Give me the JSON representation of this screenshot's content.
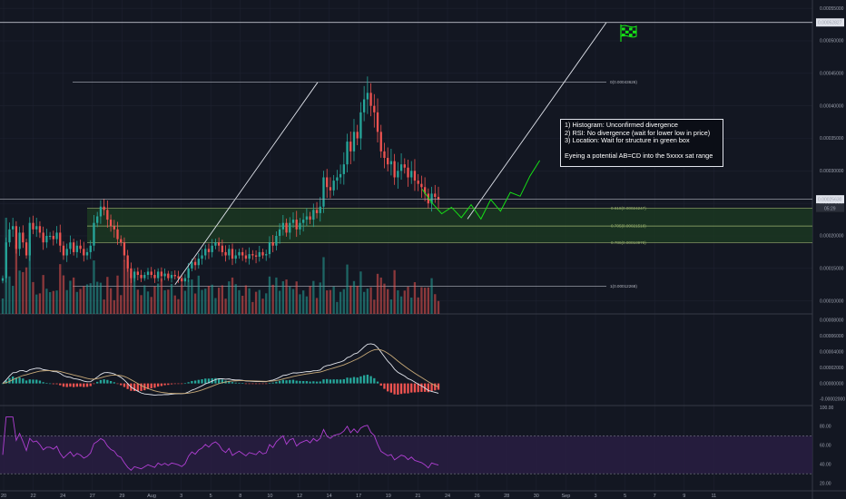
{
  "colors": {
    "background": "#131722",
    "grid": "#1e2230",
    "bull": "#26a69a",
    "bear": "#ef5350",
    "candle_light": "#e0e3eb",
    "zone_fill": "#1c3a22",
    "fib_line": "#9bb26e",
    "projection": "#16e016",
    "rsi": "#b03fd3",
    "rsi_band": "#2b1e45",
    "macd": "#e0e3eb",
    "signal": "#c6a877"
  },
  "annotation": {
    "lines": [
      "1) Histogram: Unconfirmed divergence",
      "2) RSI: No divergence (wait for lower low in price)",
      "3) Location: Wait for structure in green box",
      "",
      "Eyeing a potential AB=CD into the 5xxxx sat range"
    ]
  },
  "flag_icon": "checkered-flag",
  "chart_data": [
    {
      "type": "candlestick",
      "pane": "price",
      "x_labels": [
        "20",
        "22",
        "24",
        "27",
        "29",
        "Aug",
        "3",
        "5",
        "8",
        "10",
        "12",
        "14",
        "17",
        "19",
        "21",
        "24",
        "26",
        "28",
        "30",
        "Sep",
        "3",
        "5",
        "7",
        "9",
        "11"
      ],
      "y_ticks": [
        "0.00055000",
        "0.00050000",
        "0.00045000",
        "0.00040000",
        "0.00035000",
        "0.00030000",
        "0.00025000",
        "0.00020000",
        "0.00015000",
        "0.00010000"
      ],
      "ylim": [
        8e-05,
        0.00056
      ],
      "price_markers": [
        {
          "value": 0.00052827,
          "label": "0.00052827"
        },
        {
          "value": 0.0002563,
          "label": "0.00025630"
        },
        {
          "label": "05:29"
        }
      ],
      "fibonacci": [
        {
          "level": 0,
          "value": 0.00043626,
          "label": "0(0.00043626)"
        },
        {
          "level": 0.618,
          "value": 0.00024247,
          "label": "0.618(0.00024247)"
        },
        {
          "level": 0.705,
          "value": 0.00021518,
          "label": "0.705(0.00021518)"
        },
        {
          "level": 0.786,
          "value": 0.00018978,
          "label": "0.786(0.00018978)"
        },
        {
          "level": 1,
          "value": 0.00012268,
          "label": "1(0.00012268)"
        }
      ],
      "target": 0.00052827,
      "close": [
        0.000135,
        0.00019,
        0.00021,
        0.000215,
        0.00018,
        0.000205,
        0.00019,
        0.00017,
        0.00022,
        0.00021,
        0.000215,
        0.000205,
        0.00019,
        0.0002,
        0.0002,
        0.000195,
        0.000205,
        0.000185,
        0.00017,
        0.00018,
        0.00019,
        0.000175,
        0.000185,
        0.00018,
        0.00017,
        0.000175,
        0.000185,
        0.00022,
        0.00023,
        0.000245,
        0.00024,
        0.000225,
        0.000215,
        0.00021,
        0.000195,
        0.00019,
        0.00017,
        0.00015,
        0.000135,
        0.000145,
        0.00014,
        0.000135,
        0.00014,
        0.000145,
        0.00014,
        0.000135,
        0.000145,
        0.000138,
        0.000142,
        0.000135,
        0.00014,
        0.000138,
        0.000135,
        0.00013,
        0.000135,
        0.00015,
        0.00016,
        0.000155,
        0.000165,
        0.00017,
        0.00018,
        0.000175,
        0.000185,
        0.00019,
        0.000185,
        0.000175,
        0.00017,
        0.00018,
        0.000165,
        0.00017,
        0.000175,
        0.00017,
        0.000165,
        0.000172,
        0.00017,
        0.000168,
        0.000175,
        0.00017,
        0.000172,
        0.00019,
        0.000185,
        0.0002,
        0.00021,
        0.00022,
        0.000205,
        0.00022,
        0.000225,
        0.00021,
        0.00022,
        0.000225,
        0.00023,
        0.000225,
        0.00024,
        0.000235,
        0.000245,
        0.00029,
        0.000275,
        0.00027,
        0.000285,
        0.00029,
        0.000295,
        0.00031,
        0.000345,
        0.00033,
        0.00036,
        0.00035,
        0.00039,
        0.00041,
        0.00042,
        0.0004,
        0.00039,
        0.00036,
        0.00033,
        0.00032,
        0.00031,
        0.000315,
        0.00029,
        0.0003,
        0.00031,
        0.000305,
        0.00029,
        0.0003,
        0.000285,
        0.00028,
        0.000275,
        0.000265,
        0.00025,
        0.000265,
        0.00026,
        0.000256
      ],
      "projection_path": [
        0.000272,
        0.000251,
        0.000234,
        0.000244,
        0.000228,
        0.000248,
        0.000226,
        0.000256,
        0.000238,
        0.000267,
        0.000261,
        0.000292,
        0.000316
      ]
    },
    {
      "type": "macd",
      "pane": "macd",
      "y_ticks": [
        "0.00008000",
        "0.00006000",
        "0.00004000",
        "0.00002000",
        "0.00000000",
        "-0.00002000"
      ],
      "ylim": [
        -2.8e-05,
        8.8e-05
      ]
    },
    {
      "type": "line",
      "pane": "rsi",
      "y_ticks": [
        "100.00",
        "80.00",
        "60.00",
        "40.00",
        "20.00"
      ],
      "ylim": [
        12,
        102
      ],
      "band": [
        30,
        70
      ]
    }
  ]
}
